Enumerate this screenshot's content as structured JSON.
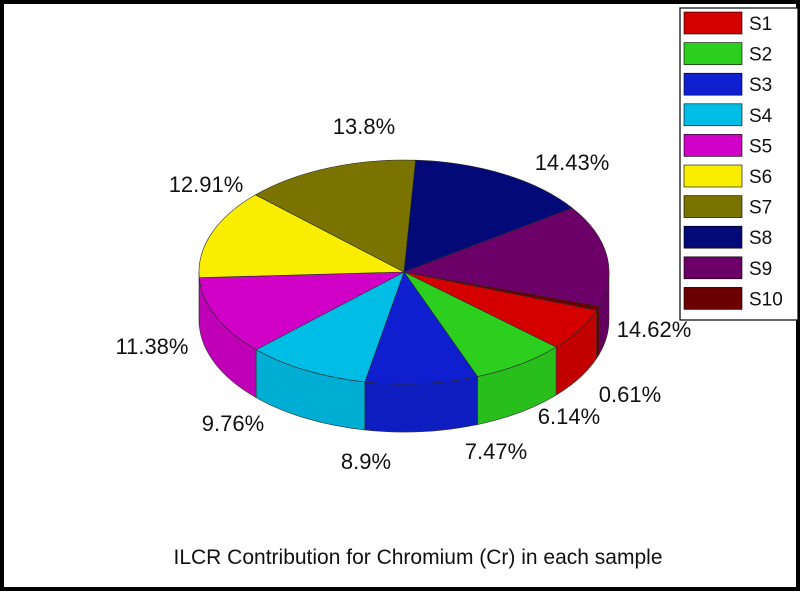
{
  "chart_data": {
    "type": "pie",
    "style": "3d-exploded-free",
    "title": "ILCR Contribution for Chromium (Cr) in each sample",
    "legend_position": "top-right",
    "slices": [
      {
        "name": "S1",
        "value": 6.14,
        "label": "6.14%",
        "color": "#d40000"
      },
      {
        "name": "S2",
        "value": 7.47,
        "label": "7.47%",
        "color": "#2ccf1e"
      },
      {
        "name": "S3",
        "value": 8.9,
        "label": "8.9%",
        "color": "#0f1fd0"
      },
      {
        "name": "S4",
        "value": 9.76,
        "label": "9.76%",
        "color": "#00bde6"
      },
      {
        "name": "S5",
        "value": 11.38,
        "label": "11.38%",
        "color": "#d000c6"
      },
      {
        "name": "S6",
        "value": 12.91,
        "label": "12.91%",
        "color": "#f9ee00"
      },
      {
        "name": "S7",
        "value": 13.8,
        "label": "13.8%",
        "color": "#7a7300"
      },
      {
        "name": "S8",
        "value": 14.43,
        "label": "14.43%",
        "color": "#030a78"
      },
      {
        "name": "S9",
        "value": 14.62,
        "label": "14.62%",
        "color": "#6c0068"
      },
      {
        "name": "S10",
        "value": 0.61,
        "label": "0.61%",
        "color": "#6b0000"
      }
    ]
  }
}
